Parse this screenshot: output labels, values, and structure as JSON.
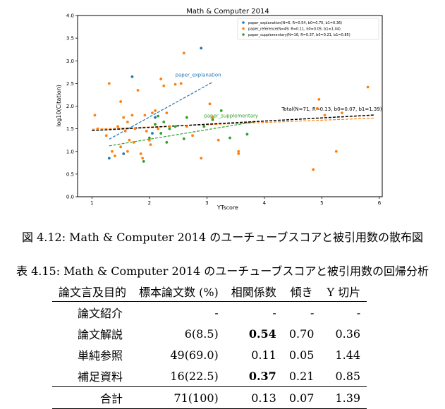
{
  "chart_data": {
    "type": "scatter",
    "title": "Math & Computer 2014",
    "xlabel": "YTscore",
    "ylabel": "log10(Citation)",
    "xlim": [
      0.75,
      6.05
    ],
    "ylim": [
      0.0,
      4.0
    ],
    "xticks": [
      1,
      2,
      3,
      4,
      5,
      6
    ],
    "yticks": [
      0.0,
      0.5,
      1.0,
      1.5,
      2.0,
      2.5,
      3.0,
      3.5,
      4.0
    ],
    "grid": false,
    "legend_position": "top-right",
    "series": [
      {
        "name": "paper_explanation(N=6, R=0.54, b0=0.70, b1=0.36)",
        "color": "#1f77b4",
        "points": [
          [
            1.3,
            0.85
          ],
          [
            1.55,
            0.95
          ],
          [
            1.7,
            2.65
          ],
          [
            2.05,
            1.4
          ],
          [
            2.1,
            1.75
          ],
          [
            2.9,
            3.28
          ]
        ]
      },
      {
        "name": "paper_reference(N=49, R=0.11, b0=0.05, b1=1.44)",
        "color": "#ff7f0e",
        "points": [
          [
            1.05,
            1.8
          ],
          [
            1.1,
            1.5
          ],
          [
            1.25,
            1.35
          ],
          [
            1.3,
            2.5
          ],
          [
            1.35,
            1.0
          ],
          [
            1.4,
            0.9
          ],
          [
            1.45,
            1.55
          ],
          [
            1.5,
            1.1
          ],
          [
            1.5,
            2.1
          ],
          [
            1.55,
            1.75
          ],
          [
            1.58,
            1.45
          ],
          [
            1.62,
            1.65
          ],
          [
            1.62,
            1.0
          ],
          [
            1.65,
            1.25
          ],
          [
            1.7,
            1.8
          ],
          [
            1.73,
            1.2
          ],
          [
            1.75,
            1.5
          ],
          [
            1.8,
            2.35
          ],
          [
            1.85,
            0.95
          ],
          [
            1.88,
            0.85
          ],
          [
            1.92,
            1.8
          ],
          [
            1.95,
            1.45
          ],
          [
            2.0,
            1.25
          ],
          [
            2.02,
            1.15
          ],
          [
            2.05,
            1.85
          ],
          [
            2.1,
            1.9
          ],
          [
            2.15,
            1.5
          ],
          [
            2.2,
            2.6
          ],
          [
            2.25,
            2.45
          ],
          [
            2.3,
            1.85
          ],
          [
            2.35,
            1.55
          ],
          [
            2.45,
            2.48
          ],
          [
            2.55,
            2.5
          ],
          [
            2.6,
            3.17
          ],
          [
            2.65,
            1.55
          ],
          [
            2.75,
            1.35
          ],
          [
            2.9,
            0.85
          ],
          [
            3.05,
            2.05
          ],
          [
            3.1,
            1.75
          ],
          [
            3.2,
            1.25
          ],
          [
            3.55,
            1.0
          ],
          [
            3.55,
            0.95
          ],
          [
            4.85,
            0.6
          ],
          [
            4.92,
            1.95
          ],
          [
            4.95,
            2.15
          ],
          [
            5.05,
            1.8
          ],
          [
            5.25,
            1.0
          ],
          [
            5.35,
            1.85
          ],
          [
            5.8,
            2.42
          ]
        ]
      },
      {
        "name": "paper_supplementary(N=16, R=0.37, b0=0.21, b1=0.85)",
        "color": "#2ca02c",
        "points": [
          [
            1.9,
            0.78
          ],
          [
            2.0,
            1.3
          ],
          [
            2.1,
            1.6
          ],
          [
            2.15,
            1.78
          ],
          [
            2.2,
            1.4
          ],
          [
            2.25,
            1.65
          ],
          [
            2.3,
            1.2
          ],
          [
            2.35,
            1.5
          ],
          [
            2.45,
            1.55
          ],
          [
            2.6,
            1.28
          ],
          [
            2.65,
            1.75
          ],
          [
            2.95,
            1.55
          ],
          [
            3.1,
            1.7
          ],
          [
            3.25,
            1.9
          ],
          [
            3.4,
            1.3
          ],
          [
            3.7,
            1.38
          ]
        ]
      }
    ],
    "fit_lines": [
      {
        "label": "paper_explanation",
        "color": "#1f77b4",
        "b0": 0.7,
        "b1": 0.36,
        "x_range": [
          1.3,
          3.1
        ],
        "label_x": 2.45,
        "label_y": 2.65
      },
      {
        "label": "paper_reference",
        "color": "#ff7f0e",
        "b0": 0.05,
        "b1": 1.44,
        "x_range": [
          1.0,
          5.9
        ],
        "label_x": 0,
        "label_y": 0
      },
      {
        "label": "paper_supplementary",
        "color": "#2ca02c",
        "b0": 0.21,
        "b1": 0.85,
        "x_range": [
          1.3,
          3.85
        ],
        "label_x": 2.95,
        "label_y": 1.75
      },
      {
        "label": "Total(N=71, R=0.13, b0=0.07, b1=1.39)",
        "color": "#000000",
        "b0": 0.07,
        "b1": 1.39,
        "x_range": [
          1.0,
          5.9
        ],
        "label_x": 4.3,
        "label_y": 1.9
      }
    ]
  },
  "figure_caption": "図 4.12: Math & Computer 2014 のユーチューブスコアと被引用数の散布図",
  "table_caption": "表 4.15: Math & Computer 2014 のユーチューブスコアと被引用数の回帰分析",
  "table": {
    "headers": [
      "論文言及目的",
      "標本論文数 (%)",
      "相関係数",
      "傾き",
      "Y 切片"
    ],
    "rows": [
      {
        "label": "論文紹介",
        "count": "-",
        "r": "-",
        "slope": "-",
        "intercept": "-"
      },
      {
        "label": "論文解説",
        "count": "6(8.5)",
        "r": "0.54",
        "slope": "0.70",
        "intercept": "0.36"
      },
      {
        "label": "単純参照",
        "count": "49(69.0)",
        "r": "0.11",
        "slope": "0.05",
        "intercept": "1.44"
      },
      {
        "label": "補足資料",
        "count": "16(22.5)",
        "r": "0.37",
        "slope": "0.21",
        "intercept": "0.85"
      }
    ],
    "total": {
      "label": "合計",
      "count": "71(100)",
      "r": "0.13",
      "slope": "0.07",
      "intercept": "1.39"
    }
  }
}
